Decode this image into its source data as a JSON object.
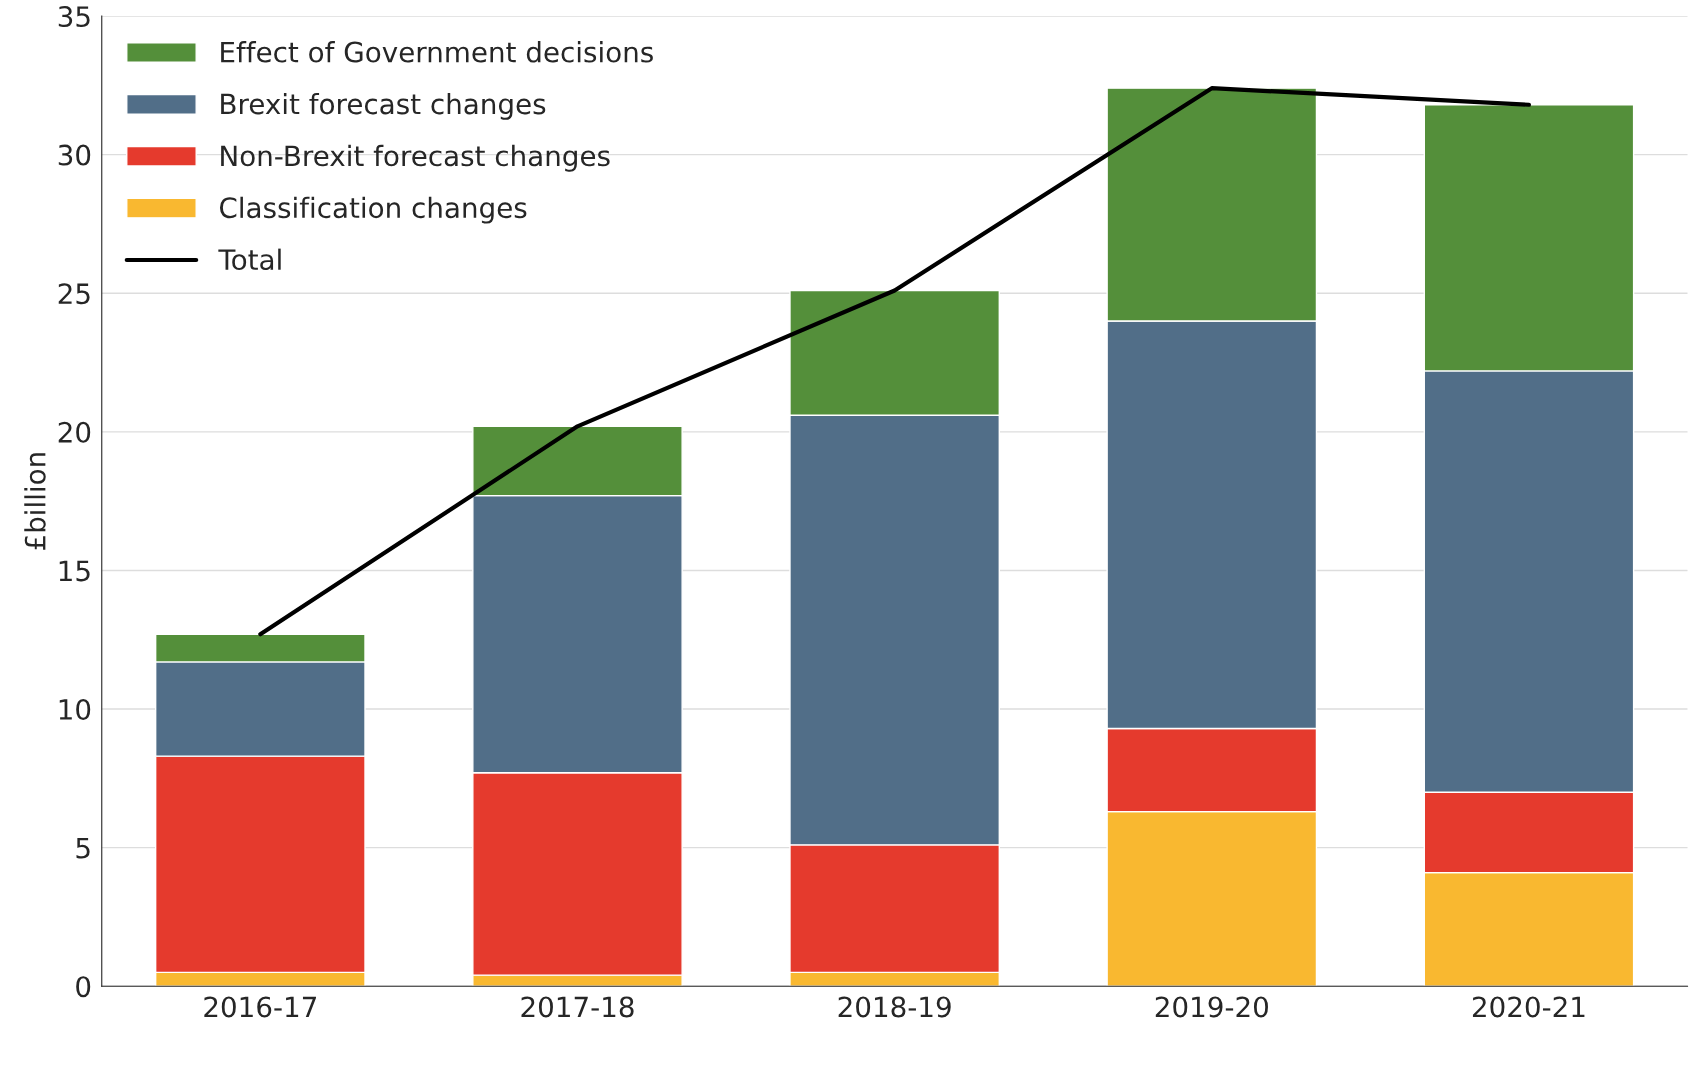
{
  "chart_data": {
    "type": "bar",
    "stacked": true,
    "ylabel": "£billion",
    "categories": [
      "2016-17",
      "2017-18",
      "2018-19",
      "2019-20",
      "2020-21"
    ],
    "series": [
      {
        "name": "Classification changes",
        "color": "#f9b830",
        "values": [
          0.5,
          0.4,
          0.5,
          6.3,
          4.1
        ]
      },
      {
        "name": "Non-Brexit forecast changes",
        "color": "#e53a2d",
        "values": [
          7.8,
          7.3,
          4.6,
          3.0,
          2.9
        ]
      },
      {
        "name": "Brexit forecast changes",
        "color": "#516e88",
        "values": [
          3.4,
          10.0,
          15.5,
          14.7,
          15.2
        ]
      },
      {
        "name": "Effect of Government decisions",
        "color": "#548f3a",
        "values": [
          1.0,
          2.5,
          4.5,
          8.4,
          9.6
        ]
      },
      {
        "name": "Total",
        "type": "line",
        "color": "#000000",
        "values": [
          12.7,
          20.2,
          25.1,
          32.4,
          31.8
        ]
      }
    ],
    "ylim": [
      0,
      35
    ],
    "yticks": [
      0,
      5,
      10,
      15,
      20,
      25,
      30,
      35
    ],
    "grid": "y",
    "legend": "top left"
  }
}
